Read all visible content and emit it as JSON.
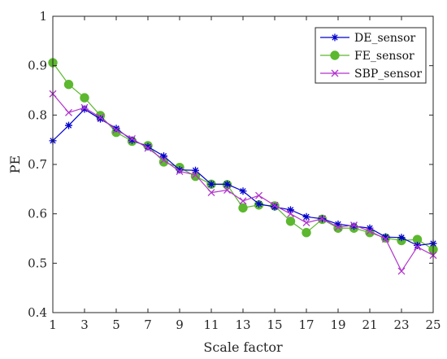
{
  "chart_data": {
    "type": "line",
    "title": "",
    "xlabel": "Scale factor",
    "ylabel": "PE",
    "xlim": [
      1,
      25
    ],
    "ylim": [
      0.4,
      1.0
    ],
    "xticks": [
      1,
      3,
      5,
      7,
      9,
      11,
      13,
      15,
      17,
      19,
      21,
      23,
      25
    ],
    "xtick_labels": [
      "1",
      "3",
      "5",
      "7",
      "9",
      "11",
      "13",
      "15",
      "17",
      "19",
      "21",
      "23",
      "25"
    ],
    "yticks": [
      0.4,
      0.5,
      0.6,
      0.7,
      0.8,
      0.9,
      1.0
    ],
    "ytick_labels": [
      "0.4",
      "0.5",
      "0.6",
      "0.7",
      "0.8",
      "0.9",
      "1"
    ],
    "grid": false,
    "legend_position": "top-right",
    "x": [
      1,
      2,
      3,
      4,
      5,
      6,
      7,
      8,
      9,
      10,
      11,
      12,
      13,
      14,
      15,
      16,
      17,
      18,
      19,
      20,
      21,
      22,
      23,
      24,
      25
    ],
    "series": [
      {
        "name": "DE_sensor",
        "color": "#0000cc",
        "marker": "asterisk",
        "values": [
          0.748,
          0.779,
          0.812,
          0.792,
          0.773,
          0.749,
          0.736,
          0.717,
          0.689,
          0.688,
          0.66,
          0.66,
          0.646,
          0.62,
          0.614,
          0.608,
          0.594,
          0.59,
          0.579,
          0.575,
          0.571,
          0.553,
          0.552,
          0.536,
          0.54
        ]
      },
      {
        "name": "FE_sensor",
        "color": "#5cb82e",
        "marker": "circle",
        "values": [
          0.906,
          0.862,
          0.835,
          0.799,
          0.765,
          0.747,
          0.738,
          0.705,
          0.694,
          0.676,
          0.66,
          0.659,
          0.612,
          0.618,
          0.616,
          0.585,
          0.562,
          0.589,
          0.571,
          0.571,
          0.562,
          0.551,
          0.546,
          0.548,
          0.528
        ]
      },
      {
        "name": "SBP_sensor",
        "color": "#b233cc",
        "marker": "cross",
        "values": [
          0.843,
          0.805,
          0.815,
          0.795,
          0.77,
          0.752,
          0.733,
          0.709,
          0.686,
          0.679,
          0.643,
          0.648,
          0.626,
          0.637,
          0.617,
          0.6,
          0.582,
          0.59,
          0.573,
          0.577,
          0.565,
          0.549,
          0.484,
          0.533,
          0.516
        ]
      }
    ]
  }
}
